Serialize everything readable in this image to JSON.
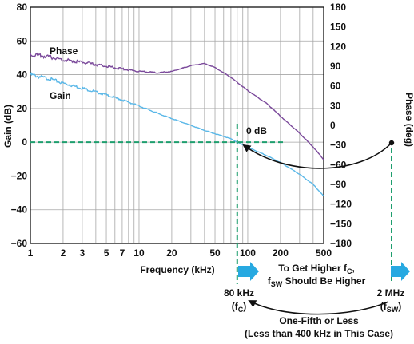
{
  "chart_data": {
    "type": "line",
    "x_scale": "log",
    "xlabel": "Frequency (kHz)",
    "ylabel_left": "Gain (dB)",
    "ylabel_right": "Phase (deg)",
    "xlim": [
      1,
      500
    ],
    "ylim_left": [
      -60,
      80
    ],
    "ylim_right": [
      -180,
      180
    ],
    "x_ticks": [
      1,
      2,
      3,
      5,
      7,
      10,
      20,
      50,
      100,
      200,
      500
    ],
    "x_tick_labels": [
      "1",
      "2",
      "3",
      "5",
      "7",
      "10",
      "20",
      "50",
      "100",
      "200",
      "500"
    ],
    "y_ticks_left": [
      80,
      60,
      40,
      20,
      0,
      -20,
      -40,
      -60
    ],
    "y_tick_labels_left": [
      "80",
      "60",
      "40",
      "20",
      "0",
      "−20",
      "−40",
      "−60"
    ],
    "y_ticks_right": [
      180,
      150,
      120,
      90,
      60,
      30,
      0,
      -30,
      -60,
      -90,
      -120,
      -150,
      -180
    ],
    "y_tick_labels_right": [
      "180",
      "150",
      "120",
      "90",
      "60",
      "30",
      "0",
      "−30",
      "−60",
      "−90",
      "−120",
      "−150",
      "−180"
    ],
    "grid": true,
    "colors": {
      "gain": "#5bb8e8",
      "phase": "#7b4a9b",
      "accent": "#27a9e1",
      "guide": "#1e9e6e",
      "axis": "#111111",
      "grid": "#a6a6a6"
    },
    "series": [
      {
        "name": "Gain",
        "axis": "left",
        "x": [
          1,
          1.5,
          2,
          3,
          5,
          7,
          10,
          15,
          20,
          30,
          40,
          50,
          60,
          70,
          80,
          100,
          150,
          200,
          300,
          400,
          500
        ],
        "y": [
          40,
          37.5,
          35,
          32,
          28,
          25,
          21.5,
          17,
          14,
          10,
          7,
          5,
          3.5,
          2,
          0,
          -3,
          -8,
          -12,
          -19,
          -25,
          -32
        ]
      },
      {
        "name": "Phase",
        "axis": "right",
        "x": [
          1,
          1.5,
          2,
          3,
          5,
          7,
          10,
          15,
          20,
          30,
          40,
          50,
          70,
          100,
          150,
          200,
          300,
          400,
          500
        ],
        "y": [
          108,
          104,
          100,
          96,
          90,
          86,
          82,
          80,
          82,
          91,
          94,
          88,
          73,
          53,
          33,
          14,
          -12,
          -33,
          -52
        ]
      }
    ],
    "annotations": {
      "phase_label": "Phase",
      "gain_label": "Gain",
      "zero_db": "0 dB",
      "fc_value": "80 kHz",
      "fc_sym_open": "(f",
      "fc_sub": "C",
      "sym_close": ")",
      "fsw_value": "2 MHz",
      "fsw_sym_open": "(f",
      "fsw_sub": "SW",
      "note1_a": "To Get Higher f",
      "note1_a_sub": "C",
      "note1_a_end": ",",
      "note1_b_start": "f",
      "note1_b_sub": "SW",
      "note1_b_end": " Should Be Higher",
      "note2_line1": "One-Fifth or Less",
      "note2_line2": "(Less than 400 kHz in This Case)"
    }
  }
}
